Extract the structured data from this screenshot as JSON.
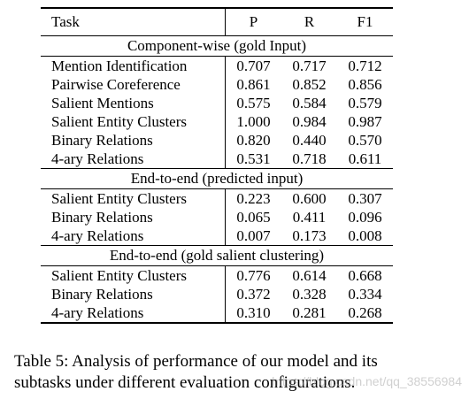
{
  "table": {
    "headers": [
      "Task",
      "P",
      "R",
      "F1"
    ],
    "sections": [
      {
        "title": "Component-wise (gold Input)",
        "rows": [
          {
            "task": "Mention Identification",
            "p": "0.707",
            "r": "0.717",
            "f1": "0.712"
          },
          {
            "task": "Pairwise Coreference",
            "p": "0.861",
            "r": "0.852",
            "f1": "0.856"
          },
          {
            "task": "Salient Mentions",
            "p": "0.575",
            "r": "0.584",
            "f1": "0.579"
          },
          {
            "task": "Salient Entity Clusters",
            "p": "1.000",
            "r": "0.984",
            "f1": "0.987"
          },
          {
            "task": "Binary Relations",
            "p": "0.820",
            "r": "0.440",
            "f1": "0.570"
          },
          {
            "task": "4-ary Relations",
            "p": "0.531",
            "r": "0.718",
            "f1": "0.611"
          }
        ]
      },
      {
        "title": "End-to-end (predicted input)",
        "rows": [
          {
            "task": "Salient Entity Clusters",
            "p": "0.223",
            "r": "0.600",
            "f1": "0.307"
          },
          {
            "task": "Binary Relations",
            "p": "0.065",
            "r": "0.411",
            "f1": "0.096"
          },
          {
            "task": "4-ary Relations",
            "p": "0.007",
            "r": "0.173",
            "f1": "0.008"
          }
        ]
      },
      {
        "title": "End-to-end (gold salient clustering)",
        "rows": [
          {
            "task": "Salient Entity Clusters",
            "p": "0.776",
            "r": "0.614",
            "f1": "0.668"
          },
          {
            "task": "Binary Relations",
            "p": "0.372",
            "r": "0.328",
            "f1": "0.334"
          },
          {
            "task": "4-ary Relations",
            "p": "0.310",
            "r": "0.281",
            "f1": "0.268"
          }
        ]
      }
    ]
  },
  "caption": {
    "line1": "Table 5: Analysis of performance of our model and its",
    "line2": "subtasks under different evaluation configurations."
  },
  "watermark": "https://blog.csdn.net/qq_38556984"
}
